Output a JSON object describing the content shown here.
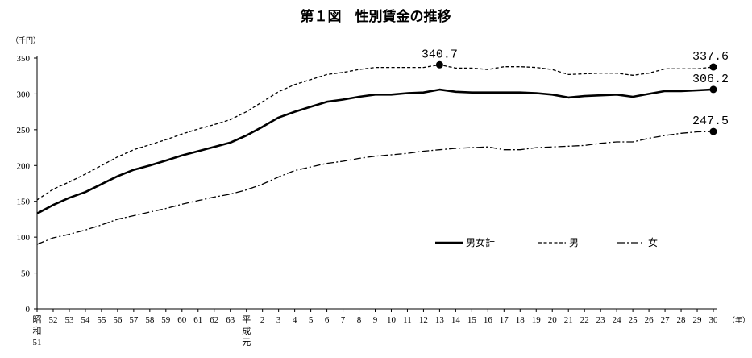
{
  "chart_data": {
    "type": "line",
    "title": "第１図　性別賃金の推移",
    "ylabel": "（千円）",
    "xlabel": "（年）",
    "ylim": [
      0,
      350
    ],
    "yticks": [
      0,
      50,
      100,
      150,
      200,
      250,
      300,
      350
    ],
    "categories": [
      [
        "昭",
        "和",
        "51"
      ],
      [
        "52"
      ],
      [
        "53"
      ],
      [
        "54"
      ],
      [
        "55"
      ],
      [
        "56"
      ],
      [
        "57"
      ],
      [
        "58"
      ],
      [
        "59"
      ],
      [
        "60"
      ],
      [
        "61"
      ],
      [
        "62"
      ],
      [
        "63"
      ],
      [
        "平",
        "成",
        "元"
      ],
      [
        "2"
      ],
      [
        "3"
      ],
      [
        "4"
      ],
      [
        "5"
      ],
      [
        "6"
      ],
      [
        "7"
      ],
      [
        "8"
      ],
      [
        "9"
      ],
      [
        "10"
      ],
      [
        "11"
      ],
      [
        "12"
      ],
      [
        "13"
      ],
      [
        "14"
      ],
      [
        "15"
      ],
      [
        "16"
      ],
      [
        "17"
      ],
      [
        "18"
      ],
      [
        "19"
      ],
      [
        "20"
      ],
      [
        "21"
      ],
      [
        "22"
      ],
      [
        "23"
      ],
      [
        "24"
      ],
      [
        "25"
      ],
      [
        "26"
      ],
      [
        "27"
      ],
      [
        "28"
      ],
      [
        "29"
      ],
      [
        "30"
      ]
    ],
    "series": [
      {
        "name": "男女計",
        "style": "solid",
        "values": [
          133,
          145,
          155,
          163,
          174,
          185,
          194,
          200,
          207,
          214,
          220,
          226,
          232,
          242,
          254,
          267,
          275,
          282,
          289,
          292,
          296,
          299,
          299,
          301,
          302,
          306,
          303,
          302,
          302,
          302,
          302,
          301,
          299,
          295,
          297,
          298,
          299,
          296,
          300,
          304,
          304,
          305,
          306.2
        ]
      },
      {
        "name": "男",
        "style": "dashed",
        "values": [
          152,
          167,
          177,
          188,
          200,
          212,
          222,
          229,
          236,
          244,
          251,
          257,
          264,
          275,
          289,
          303,
          313,
          320,
          327,
          330,
          334,
          337,
          337,
          337,
          337,
          340.7,
          336,
          336,
          334,
          338,
          338,
          337,
          334,
          327,
          328,
          329,
          329,
          326,
          329,
          335,
          335,
          335,
          337.6
        ]
      },
      {
        "name": "女",
        "style": "dashdot",
        "values": [
          90,
          99,
          104,
          110,
          117,
          125,
          130,
          135,
          140,
          146,
          151,
          156,
          160,
          166,
          174,
          184,
          193,
          198,
          203,
          206,
          210,
          213,
          215,
          217,
          220,
          222,
          224,
          225,
          226,
          222,
          222,
          225,
          226,
          227,
          228,
          231,
          233,
          233,
          238,
          242,
          245,
          247,
          247.5
        ]
      }
    ],
    "annotations": [
      {
        "series": 1,
        "index": 25,
        "text": "340.7"
      },
      {
        "series": 1,
        "index": 42,
        "text": "337.6"
      },
      {
        "series": 0,
        "index": 42,
        "text": "306.2"
      },
      {
        "series": 2,
        "index": 42,
        "text": "247.5"
      }
    ],
    "grid": false,
    "legend": "center-right"
  }
}
